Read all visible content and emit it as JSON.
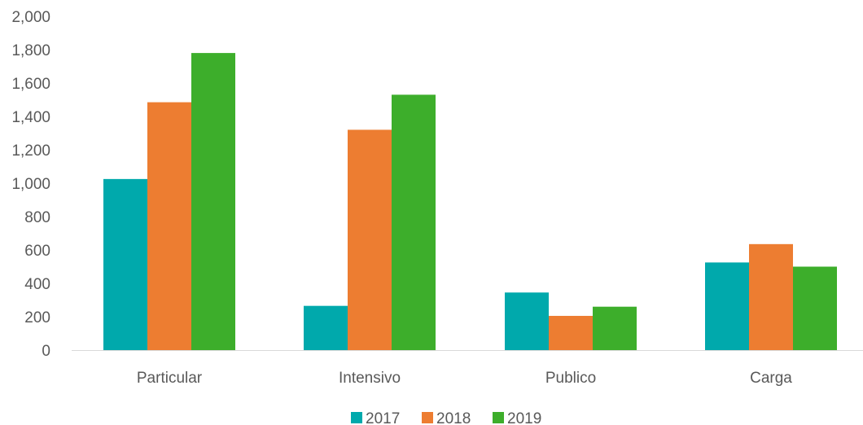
{
  "chart_data": {
    "type": "bar",
    "categories": [
      "Particular",
      "Intensivo",
      "Publico",
      "Carga"
    ],
    "series": [
      {
        "name": "2017",
        "color": "#00A9AC",
        "values": [
          1025,
          265,
          345,
          525
        ]
      },
      {
        "name": "2018",
        "color": "#ED7D31",
        "values": [
          1485,
          1320,
          205,
          635
        ]
      },
      {
        "name": "2019",
        "color": "#3DAE2B",
        "values": [
          1780,
          1530,
          260,
          500
        ]
      }
    ],
    "title": "",
    "xlabel": "",
    "ylabel": "",
    "ylim": [
      0,
      2000
    ],
    "yticks": [
      0,
      200,
      400,
      600,
      800,
      1000,
      1200,
      1400,
      1600,
      1800,
      2000
    ],
    "ytick_labels": [
      "0",
      "200",
      "400",
      "600",
      "800",
      "1,000",
      "1,200",
      "1,400",
      "1,600",
      "1,800",
      "2,000"
    ],
    "grid": false,
    "legend_position": "bottom",
    "axis_color": "#D9D9D9",
    "text_color": "#595959"
  }
}
